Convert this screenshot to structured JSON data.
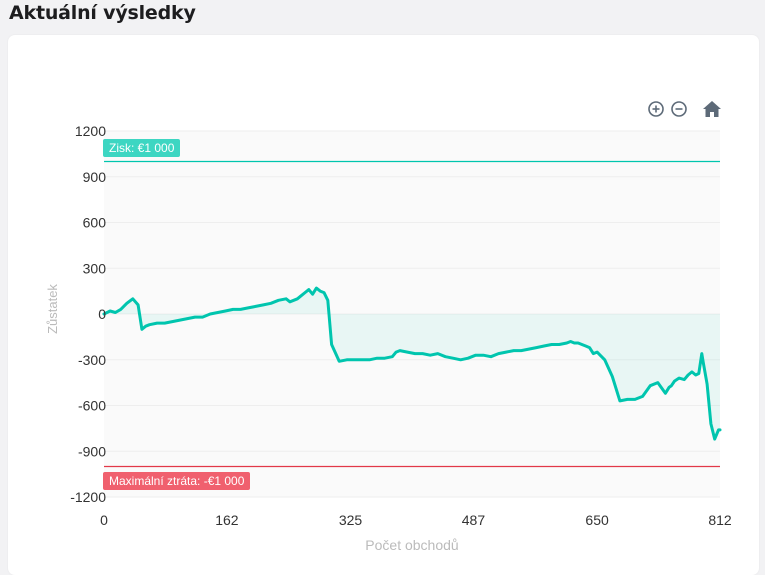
{
  "page": {
    "title": "Aktuální výsledky"
  },
  "toolbar": {
    "zoom_in_icon": "zoom-in-icon",
    "zoom_out_icon": "zoom-out-icon",
    "home_icon": "home-icon"
  },
  "colors": {
    "line": "#00c5ae",
    "profit": "#3dd6c2",
    "loss": "#f0606e",
    "loss_line": "#e23848",
    "grid": "#eeeeee",
    "axis_text": "#333333",
    "axis_title": "#bbbbbb",
    "icon": "#5d6a78"
  },
  "chart_data": {
    "type": "line",
    "xlabel": "Počet obchodů",
    "ylabel": "Zůstatek",
    "xlim": [
      0,
      812
    ],
    "ylim": [
      -1200,
      1200
    ],
    "x_ticks": [
      0,
      162,
      325,
      487,
      650,
      812
    ],
    "y_ticks": [
      1200,
      900,
      600,
      300,
      0,
      -300,
      -600,
      -900,
      -1200
    ],
    "y_tick_labels": [
      "1200",
      "900",
      "600",
      "300",
      "0",
      "-300",
      "-600",
      "-900",
      "-1200"
    ],
    "grid": true,
    "annotations": [
      {
        "y": 1000,
        "label": "Zisk: €1 000",
        "type": "profit"
      },
      {
        "y": -1000,
        "label": "Maximální ztráta: -€1 000",
        "type": "loss"
      }
    ],
    "series": [
      {
        "x": [
          0,
          8,
          15,
          22,
          30,
          38,
          45,
          50,
          55,
          60,
          70,
          80,
          90,
          100,
          110,
          120,
          130,
          140,
          150,
          160,
          170,
          180,
          190,
          200,
          210,
          220,
          230,
          240,
          245,
          250,
          255,
          260,
          265,
          270,
          275,
          280,
          285,
          290,
          295,
          300,
          310,
          320,
          330,
          340,
          350,
          360,
          370,
          380,
          385,
          390,
          400,
          410,
          420,
          430,
          440,
          450,
          460,
          470,
          480,
          490,
          500,
          510,
          520,
          530,
          540,
          550,
          560,
          570,
          580,
          590,
          600,
          610,
          615,
          620,
          625,
          630,
          635,
          640,
          645,
          650,
          660,
          670,
          680,
          690,
          700,
          710,
          720,
          730,
          740,
          745,
          748,
          752,
          758,
          765,
          770,
          775,
          780,
          784,
          788,
          790,
          795,
          800,
          805,
          810,
          812
        ],
        "y": [
          0,
          20,
          10,
          30,
          70,
          100,
          60,
          -100,
          -80,
          -70,
          -60,
          -60,
          -50,
          -40,
          -30,
          -20,
          -20,
          0,
          10,
          20,
          30,
          30,
          40,
          50,
          60,
          70,
          90,
          100,
          80,
          90,
          100,
          120,
          140,
          160,
          130,
          170,
          150,
          140,
          90,
          -200,
          -310,
          -300,
          -300,
          -300,
          -300,
          -290,
          -290,
          -280,
          -250,
          -240,
          -250,
          -260,
          -260,
          -270,
          -260,
          -280,
          -290,
          -300,
          -290,
          -270,
          -270,
          -280,
          -260,
          -250,
          -240,
          -240,
          -230,
          -220,
          -210,
          -200,
          -200,
          -190,
          -180,
          -190,
          -190,
          -200,
          -210,
          -220,
          -260,
          -250,
          -300,
          -410,
          -570,
          -560,
          -560,
          -540,
          -470,
          -450,
          -520,
          -480,
          -470,
          -440,
          -420,
          -430,
          -400,
          -380,
          -400,
          -390,
          -260,
          -320,
          -460,
          -720,
          -820,
          -760,
          -760
        ]
      }
    ]
  }
}
